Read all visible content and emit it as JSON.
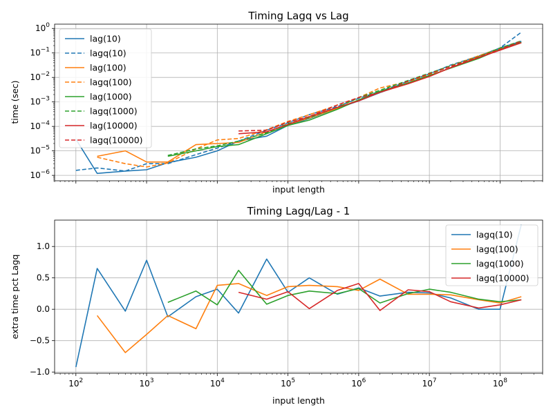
{
  "colors": {
    "c10": "#1f77b4",
    "c100": "#ff7f0e",
    "c1000": "#2ca02c",
    "c10000": "#d62728"
  },
  "chart_data": [
    {
      "type": "line",
      "title": "Timing Lagq vs Lag",
      "xlabel": "input length",
      "ylabel": "time (sec)",
      "xscale": "log",
      "yscale": "log",
      "xlim": [
        50,
        400000000
      ],
      "ylim": [
        6e-07,
        1.5
      ],
      "grid": true,
      "legend_position": "upper-left",
      "yticks": [
        {
          "v": 1e-06,
          "exp": "−6"
        },
        {
          "v": 1e-05,
          "exp": "−5"
        },
        {
          "v": 0.0001,
          "exp": "−4"
        },
        {
          "v": 0.001,
          "exp": "−3"
        },
        {
          "v": 0.01,
          "exp": "−2"
        },
        {
          "v": 0.1,
          "exp": "−1"
        },
        {
          "v": 1,
          "exp": "0"
        }
      ],
      "xticks": [],
      "series": [
        {
          "name": "lag(10)",
          "color": "c10",
          "dash": false,
          "x": [
            100,
            200,
            500,
            1000,
            2000,
            5000,
            10000,
            20000,
            50000,
            100000,
            200000,
            500000,
            1000000,
            2000000,
            5000000,
            10000000,
            20000000,
            50000000,
            100000000,
            200000000
          ],
          "y": [
            3e-05,
            1.2e-06,
            1.5e-06,
            1.7e-06,
            3.3e-06,
            5.5e-06,
            1e-05,
            2.5e-05,
            4e-05,
            0.00011,
            0.00021,
            0.00055,
            0.0011,
            0.0024,
            0.006,
            0.0115,
            0.025,
            0.07,
            0.16,
            0.3
          ]
        },
        {
          "name": "lagq(10)",
          "color": "c10",
          "dash": true,
          "x": [
            100,
            200,
            500,
            1000,
            2000,
            5000,
            10000,
            20000,
            50000,
            100000,
            200000,
            500000,
            1000000,
            2000000,
            5000000,
            10000000,
            20000000,
            50000000,
            100000000,
            200000000
          ],
          "y": [
            1.6e-06,
            2e-06,
            1.5e-06,
            3e-06,
            3e-06,
            7e-06,
            1.3e-05,
            2.5e-05,
            7e-05,
            0.00014,
            0.0003,
            0.00065,
            0.0014,
            0.0027,
            0.007,
            0.014,
            0.032,
            0.075,
            0.16,
            0.7
          ]
        },
        {
          "name": "lag(100)",
          "color": "c100",
          "dash": false,
          "x": [
            200,
            500,
            1000,
            2000,
            5000,
            10000,
            20000,
            50000,
            100000,
            200000,
            500000,
            1000000,
            2000000,
            5000000,
            10000000,
            20000000,
            50000000,
            100000000,
            200000000
          ],
          "y": [
            6e-06,
            1e-05,
            3.5e-06,
            3.5e-06,
            1.8e-05,
            2e-05,
            2.2e-05,
            6e-05,
            0.00012,
            0.00022,
            0.00055,
            0.0012,
            0.0025,
            0.0055,
            0.011,
            0.025,
            0.07,
            0.14,
            0.27
          ]
        },
        {
          "name": "lagq(100)",
          "color": "c100",
          "dash": true,
          "x": [
            200,
            500,
            1000,
            2000,
            5000,
            10000,
            20000,
            50000,
            100000,
            200000,
            500000,
            1000000,
            2000000,
            5000000,
            10000000,
            20000000,
            50000000,
            100000000,
            200000000
          ],
          "y": [
            5.5e-06,
            3e-06,
            2.2e-06,
            3.2e-06,
            1.2e-05,
            2.8e-05,
            3.2e-05,
            7.3e-05,
            0.00016,
            0.0003,
            0.00074,
            0.0015,
            0.0037,
            0.0068,
            0.013,
            0.03,
            0.077,
            0.155,
            0.31
          ]
        },
        {
          "name": "lag(1000)",
          "color": "c1000",
          "dash": false,
          "x": [
            2000,
            5000,
            10000,
            20000,
            50000,
            100000,
            200000,
            500000,
            1000000,
            2000000,
            5000000,
            10000000,
            20000000,
            50000000,
            100000000,
            200000000
          ],
          "y": [
            6e-06,
            1e-05,
            1.5e-05,
            1.8e-05,
            5e-05,
            0.00011,
            0.00018,
            0.0005,
            0.0012,
            0.0027,
            0.006,
            0.012,
            0.024,
            0.06,
            0.14,
            0.27
          ]
        },
        {
          "name": "lagq(1000)",
          "color": "c1000",
          "dash": true,
          "x": [
            2000,
            5000,
            10000,
            20000,
            50000,
            100000,
            200000,
            500000,
            1000000,
            2000000,
            5000000,
            10000000,
            20000000,
            50000000,
            100000000,
            200000000
          ],
          "y": [
            6.5e-06,
            1.2e-05,
            1.6e-05,
            2.5e-05,
            5.5e-05,
            0.00013,
            0.00023,
            0.0006,
            0.0015,
            0.003,
            0.0075,
            0.015,
            0.03,
            0.07,
            0.16,
            0.31
          ]
        },
        {
          "name": "lag(10000)",
          "color": "c10000",
          "dash": false,
          "x": [
            20000,
            50000,
            100000,
            200000,
            500000,
            1000000,
            2000000,
            5000000,
            10000000,
            20000000,
            50000000,
            100000000,
            200000000
          ],
          "y": [
            5e-05,
            6e-05,
            0.00012,
            0.00025,
            0.0006,
            0.0011,
            0.0025,
            0.0055,
            0.011,
            0.025,
            0.065,
            0.13,
            0.26
          ]
        },
        {
          "name": "lagq(10000)",
          "color": "c10000",
          "dash": true,
          "x": [
            20000,
            50000,
            100000,
            200000,
            500000,
            1000000,
            2000000,
            5000000,
            10000000,
            20000000,
            50000000,
            100000000,
            200000000
          ],
          "y": [
            6.5e-05,
            7e-05,
            0.00015,
            0.00025,
            0.00075,
            0.0015,
            0.0024,
            0.007,
            0.014,
            0.028,
            0.067,
            0.14,
            0.3
          ]
        }
      ]
    },
    {
      "type": "line",
      "title": "Timing Lagq/Lag - 1",
      "xlabel": "input length",
      "ylabel": "extra time pct Lagq",
      "xscale": "log",
      "yscale": "linear",
      "xlim": [
        50,
        400000000
      ],
      "ylim": [
        -1.02,
        1.42
      ],
      "grid": true,
      "legend_position": "upper-right",
      "yticks": [
        {
          "v": -1.0,
          "label": "−1.0"
        },
        {
          "v": -0.5,
          "label": "−0.5"
        },
        {
          "v": 0.0,
          "label": "0.0"
        },
        {
          "v": 0.5,
          "label": "0.5"
        },
        {
          "v": 1.0,
          "label": "1.0"
        }
      ],
      "xticks": [
        {
          "v": 100,
          "exp": "2"
        },
        {
          "v": 1000,
          "exp": "3"
        },
        {
          "v": 10000,
          "exp": "4"
        },
        {
          "v": 100000,
          "exp": "5"
        },
        {
          "v": 1000000,
          "exp": "6"
        },
        {
          "v": 10000000,
          "exp": "7"
        },
        {
          "v": 100000000,
          "exp": "8"
        }
      ],
      "series": [
        {
          "name": "lagq(10)",
          "color": "c10",
          "dash": false,
          "x": [
            100,
            200,
            500,
            1000,
            2000,
            5000,
            10000,
            20000,
            50000,
            100000,
            200000,
            500000,
            1000000,
            2000000,
            5000000,
            10000000,
            20000000,
            50000000,
            100000000,
            200000000
          ],
          "y": [
            -0.92,
            0.65,
            -0.03,
            0.78,
            -0.12,
            0.2,
            0.32,
            -0.06,
            0.8,
            0.27,
            0.5,
            0.24,
            0.34,
            0.21,
            0.27,
            0.26,
            0.18,
            0.0,
            0.0,
            1.35
          ]
        },
        {
          "name": "lagq(100)",
          "color": "c100",
          "dash": false,
          "x": [
            200,
            500,
            1000,
            2000,
            5000,
            10000,
            20000,
            50000,
            100000,
            200000,
            500000,
            1000000,
            2000000,
            5000000,
            10000000,
            20000000,
            50000000,
            100000000,
            200000000
          ],
          "y": [
            -0.1,
            -0.69,
            -0.4,
            -0.1,
            -0.31,
            0.38,
            0.41,
            0.22,
            0.36,
            0.38,
            0.36,
            0.3,
            0.48,
            0.24,
            0.24,
            0.23,
            0.15,
            0.1,
            0.2
          ]
        },
        {
          "name": "lagq(1000)",
          "color": "c1000",
          "dash": false,
          "x": [
            2000,
            5000,
            10000,
            20000,
            50000,
            100000,
            200000,
            500000,
            1000000,
            2000000,
            5000000,
            10000000,
            20000000,
            50000000,
            100000000,
            200000000
          ],
          "y": [
            0.11,
            0.29,
            0.07,
            0.62,
            0.08,
            0.22,
            0.29,
            0.25,
            0.33,
            0.1,
            0.25,
            0.32,
            0.27,
            0.16,
            0.12,
            0.15
          ]
        },
        {
          "name": "lagq(10000)",
          "color": "c10000",
          "dash": false,
          "x": [
            20000,
            50000,
            100000,
            200000,
            500000,
            1000000,
            2000000,
            5000000,
            10000000,
            20000000,
            50000000,
            100000000,
            200000000
          ],
          "y": [
            0.27,
            0.16,
            0.28,
            0.01,
            0.3,
            0.41,
            -0.02,
            0.31,
            0.28,
            0.12,
            0.02,
            0.07,
            0.15
          ]
        }
      ]
    }
  ]
}
